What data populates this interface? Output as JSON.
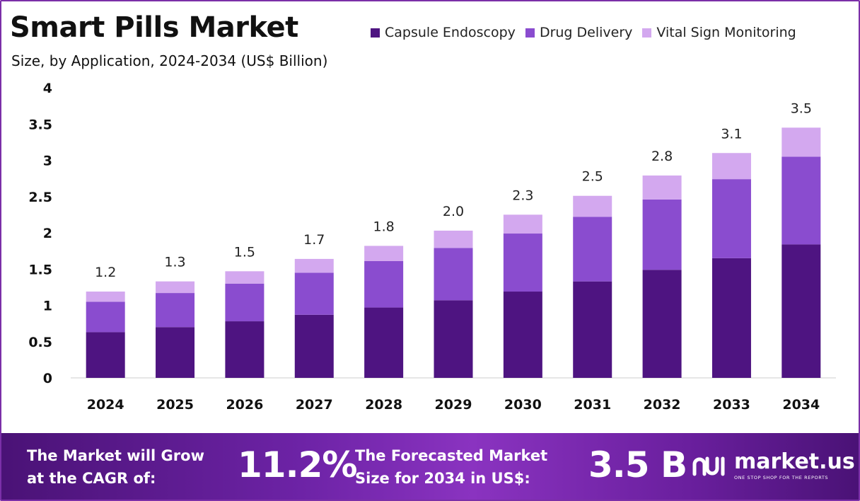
{
  "header": {
    "title": "Smart Pills Market",
    "subtitle": "Size, by Application, 2024-2034 (US$ Billion)"
  },
  "colors": {
    "capsule_endoscopy": "#4e1481",
    "drug_delivery": "#8a4ccf",
    "vital_sign_monitoring": "#d3a8ef",
    "frame": "#7b2fa8"
  },
  "chart_data": {
    "type": "bar",
    "stacked": true,
    "title": "Smart Pills Market",
    "subtitle": "Size, by Application, 2024-2034 (US$ Billion)",
    "categories": [
      "2024",
      "2025",
      "2026",
      "2027",
      "2028",
      "2029",
      "2030",
      "2031",
      "2032",
      "2033",
      "2034"
    ],
    "series": [
      {
        "name": "Capsule Endoscopy",
        "values": [
          0.63,
          0.7,
          0.78,
          0.87,
          0.97,
          1.07,
          1.19,
          1.33,
          1.49,
          1.65,
          1.84
        ]
      },
      {
        "name": "Drug Delivery",
        "values": [
          0.42,
          0.47,
          0.52,
          0.58,
          0.64,
          0.72,
          0.8,
          0.89,
          0.97,
          1.09,
          1.21
        ]
      },
      {
        "name": "Vital Sign Monitoring",
        "values": [
          0.14,
          0.16,
          0.17,
          0.19,
          0.21,
          0.24,
          0.26,
          0.29,
          0.33,
          0.36,
          0.4
        ]
      }
    ],
    "totals": [
      "1.2",
      "1.3",
      "1.5",
      "1.7",
      "1.8",
      "2.0",
      "2.3",
      "2.5",
      "2.8",
      "3.1",
      "3.5"
    ],
    "yticks": [
      "0",
      "0.5",
      "1",
      "1.5",
      "2",
      "2.5",
      "3",
      "3.5",
      "4"
    ],
    "ylim": [
      0,
      4
    ],
    "xlabel": "",
    "ylabel": "",
    "grid": false,
    "legend_position": "top-right"
  },
  "footer": {
    "cagr_label_line1": "The Market will Grow",
    "cagr_label_line2": "at the CAGR of:",
    "cagr_value": "11.2%",
    "forecast_label_line1": "The Forecasted Market",
    "forecast_label_line2": "Size for 2034 in US$:",
    "forecast_value": "3.5 B",
    "brand_name": "market.us",
    "brand_tagline": "ONE STOP SHOP FOR THE REPORTS",
    "brand_logo_icon": "market-us-logo-icon"
  }
}
